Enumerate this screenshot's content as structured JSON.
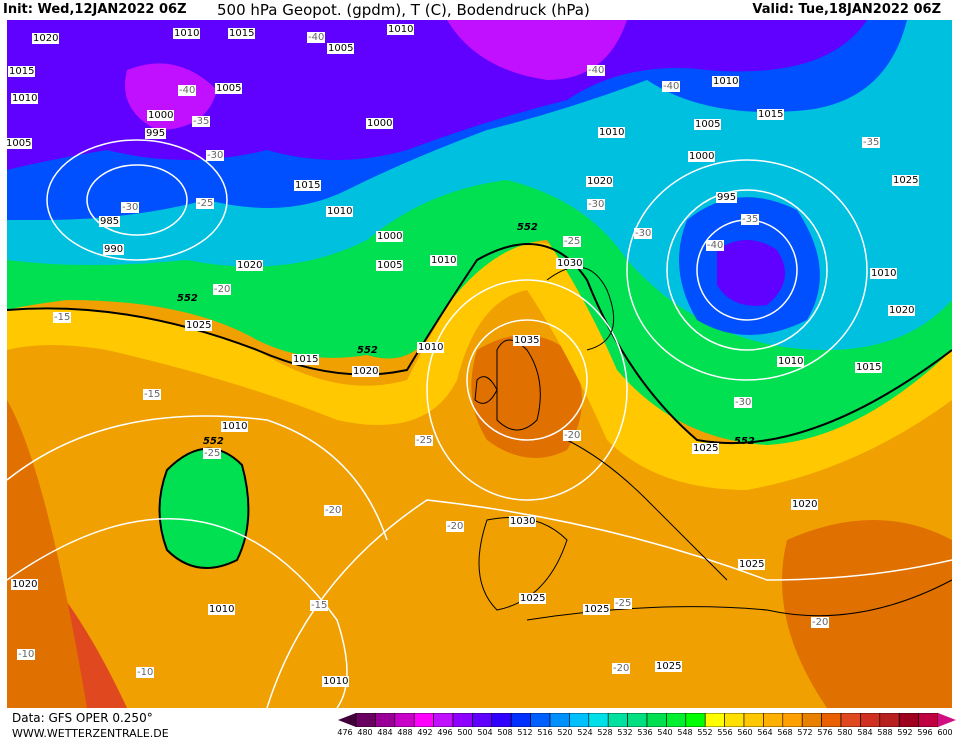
{
  "header": {
    "init": "Init: Wed,12JAN2022 06Z",
    "title": "500 hPa Geopot. (gpdm), T (C), Bodendruck (hPa)",
    "valid": "Valid: Tue,18JAN2022 06Z"
  },
  "footer": {
    "data": "Data: GFS OPER 0.250°",
    "site": "WWW.WETTERZENTRALE.DE"
  },
  "legend": {
    "ticks": [
      "476",
      "480",
      "484",
      "488",
      "492",
      "496",
      "500",
      "504",
      "508",
      "512",
      "516",
      "520",
      "524",
      "528",
      "532",
      "536",
      "540",
      "548",
      "552",
      "556",
      "560",
      "564",
      "568",
      "572",
      "576",
      "580",
      "584",
      "588",
      "592",
      "596",
      "600"
    ],
    "colors": [
      "#6a0060",
      "#9a0098",
      "#c800c8",
      "#ff00ff",
      "#c010ff",
      "#9000ff",
      "#6000ff",
      "#3000ff",
      "#0030ff",
      "#0060ff",
      "#0090ff",
      "#00c0ff",
      "#00e0e8",
      "#00e0a0",
      "#00e080",
      "#00e050",
      "#00f030",
      "#00ff00",
      "#ffff00",
      "#ffe000",
      "#ffc800",
      "#ffb000",
      "#ffa000",
      "#e88000",
      "#e86000",
      "#e04820",
      "#d03020",
      "#b82020",
      "#a00020",
      "#c00040"
    ]
  },
  "isobars": [
    "1020",
    "1010",
    "1015",
    "1005",
    "1010",
    "1015",
    "1010",
    "1000",
    "1005",
    "1005",
    "995",
    "985",
    "990",
    "1000",
    "1015",
    "1010",
    "1000",
    "1005",
    "1010",
    "1020",
    "1025",
    "1015",
    "1035",
    "1030",
    "1010",
    "1020",
    "1010",
    "1030",
    "1025",
    "1020",
    "1025",
    "1010",
    "1000",
    "1005",
    "1015",
    "1010",
    "995",
    "1025",
    "1010",
    "1020",
    "1015",
    "1025",
    "1025",
    "1025",
    "1020",
    "1010",
    "1010",
    "1020",
    "1010"
  ],
  "temps": [
    "-40",
    "-40",
    "-35",
    "-30",
    "-25",
    "-30",
    "-20",
    "-15",
    "-15",
    "-25",
    "-20",
    "-25",
    "-20",
    "-20",
    "-15",
    "-10",
    "-10",
    "-20",
    "-25",
    "-40",
    "-40",
    "-35",
    "-40",
    "-35",
    "-30",
    "-30",
    "-25",
    "-20",
    "-30"
  ],
  "contour_552": "552",
  "map_colors": {
    "base": "#f0a000",
    "yellow": "#ffe000",
    "green": "#00e050",
    "cyan": "#00c0e0",
    "blue": "#0050ff",
    "purple": "#8000ff",
    "magenta": "#d000d0",
    "dark_orange": "#e07000",
    "red": "#e04820"
  }
}
